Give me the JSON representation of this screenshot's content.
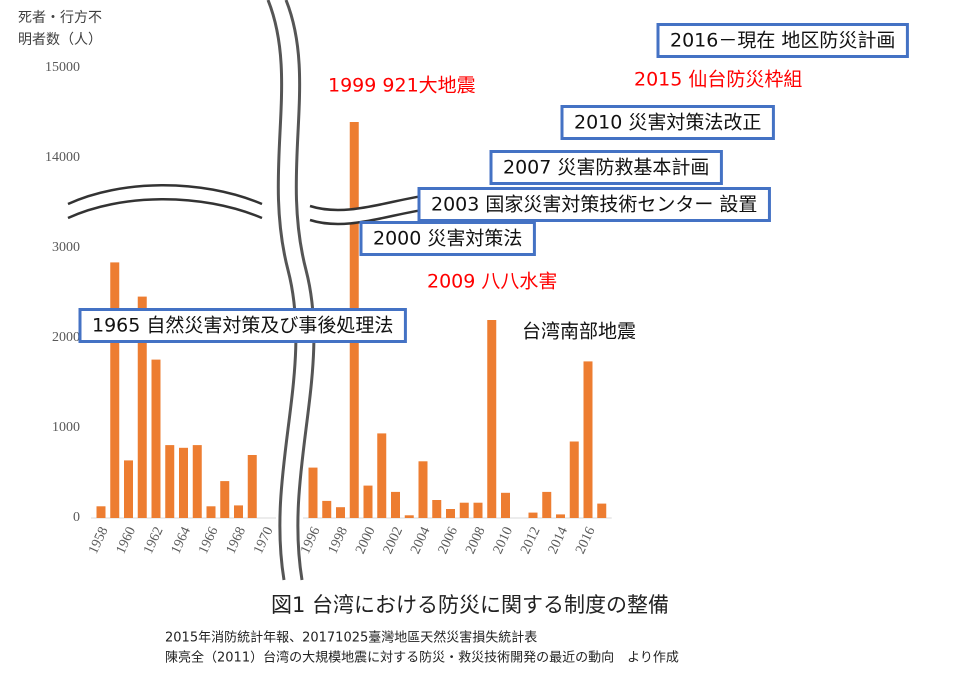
{
  "chart_data": {
    "type": "bar",
    "title": "図1 台湾における防災に関する制度の整備",
    "y_label": [
      "死者・行方不",
      "明者数（人）"
    ],
    "sources": [
      "2015年消防統計年報、20171025臺灣地區天然災害損失統計表",
      "陳亮全（2011）台湾の大規模地震に対する防災・救災技術開発の最近の動向　より作成"
    ],
    "color": "#ed7d31",
    "ylim": [
      0,
      15000
    ],
    "yticks": [
      0,
      1000,
      2000,
      3000,
      14000,
      15000
    ],
    "axis_break": true,
    "segments": [
      {
        "categories": [
          "1958",
          null,
          "1960",
          null,
          "1962",
          null,
          "1964",
          null,
          "1966",
          null,
          "1968",
          null,
          "1970"
        ],
        "values": [
          130,
          2840,
          640,
          2460,
          1760,
          810,
          780,
          810,
          130,
          410,
          140,
          700,
          null
        ]
      },
      {
        "categories": [
          "1996",
          null,
          "1998",
          null,
          "2000",
          null,
          "2002",
          null,
          "2004",
          null,
          "2006",
          null,
          "2008",
          null,
          "2010",
          null,
          "2012",
          null,
          "2014",
          null,
          "2016",
          null
        ],
        "values": [
          560,
          190,
          120,
          14400,
          360,
          940,
          290,
          30,
          630,
          200,
          100,
          170,
          170,
          2200,
          280,
          0,
          60,
          290,
          40,
          850,
          1740,
          160
        ]
      }
    ],
    "annotations": [
      {
        "text": "2016－現在 地区防災計画",
        "boxed": true
      },
      {
        "text": "2015 仙台防災枠組",
        "color": "#ff0000"
      },
      {
        "text": "1999 921大地震",
        "color": "#ff0000"
      },
      {
        "text": "2010 災害対策法改正",
        "boxed": true
      },
      {
        "text": "2007 災害防救基本計画",
        "boxed": true
      },
      {
        "text": "2003 国家災害対策技術センター 設置",
        "boxed": true
      },
      {
        "text": "2000 災害対策法",
        "boxed": true
      },
      {
        "text": "2009 八八水害",
        "color": "#ff0000"
      },
      {
        "text": "1965 自然災害対策及び事後処理法",
        "boxed": true
      },
      {
        "text": "台湾南部地震",
        "small": true
      }
    ]
  }
}
